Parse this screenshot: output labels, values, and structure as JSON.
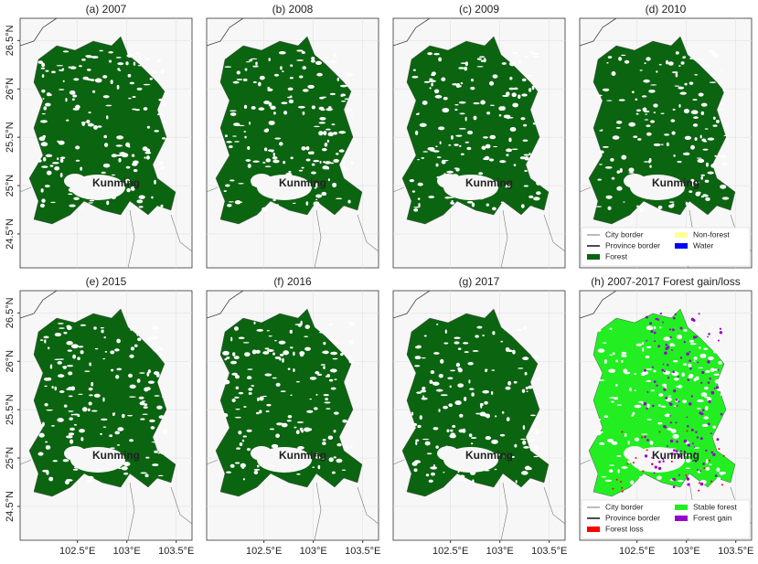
{
  "panels": [
    {
      "title": "(a) 2007"
    },
    {
      "title": "(b) 2008"
    },
    {
      "title": "(c) 2009"
    },
    {
      "title": "(d) 2010"
    },
    {
      "title": "(e) 2015"
    },
    {
      "title": "(f) 2016"
    },
    {
      "title": "(g) 2017"
    },
    {
      "title": "(h) 2007-2017 Forest gain/loss"
    }
  ],
  "city_label": "Kunming",
  "ylim": [
    24.15,
    26.73
  ],
  "xlim": [
    101.92,
    103.66
  ],
  "yticks": [
    {
      "value": 24.5,
      "label": "24.5°N"
    },
    {
      "value": 25,
      "label": "25°N"
    },
    {
      "value": 25.5,
      "label": "25.5°N"
    },
    {
      "value": 26,
      "label": "26°N"
    },
    {
      "value": 26.5,
      "label": "26.5°N"
    }
  ],
  "xticks": [
    {
      "value": 102.5,
      "label": "102.5°E"
    },
    {
      "value": 103,
      "label": "103°E"
    },
    {
      "value": 103.5,
      "label": "103.5°E"
    }
  ],
  "legend_d": [
    "City border",
    "Province border",
    "Forest",
    "Non-forest",
    "Water"
  ],
  "legend_h": [
    "City border",
    "Province border",
    "Forest loss",
    "Stable forest",
    "Forest gain"
  ]
}
